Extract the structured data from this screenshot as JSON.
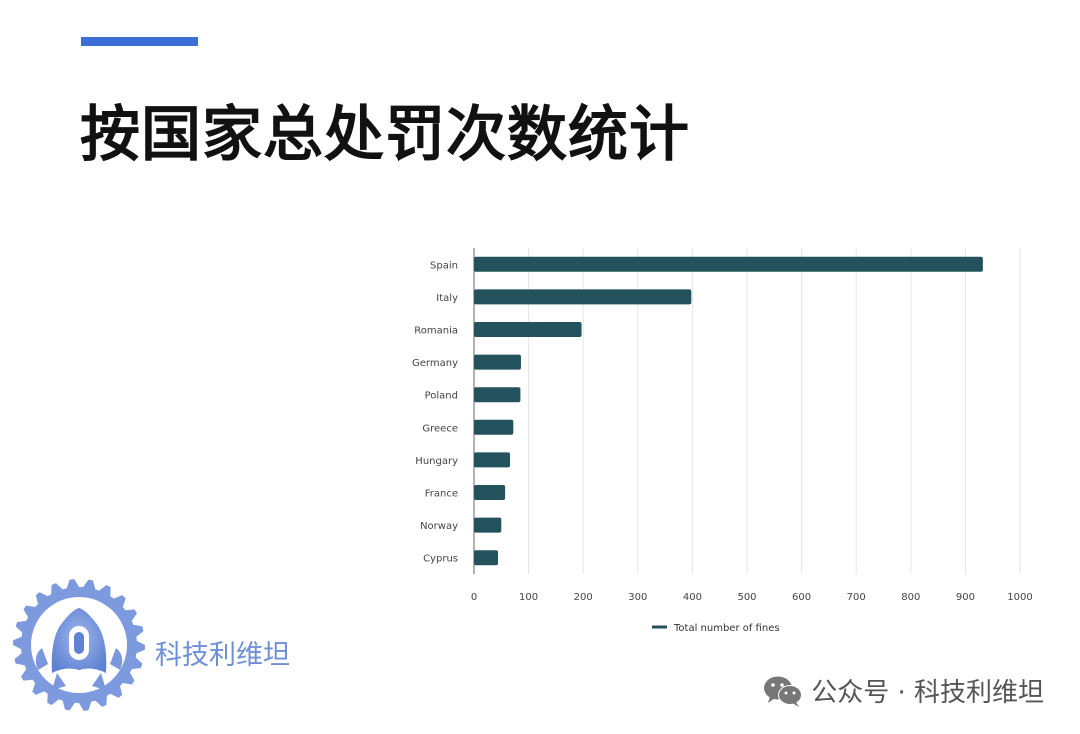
{
  "slide": {
    "title": "按国家总处罚次数统计"
  },
  "brand": {
    "name": "科技利维坦"
  },
  "footer": {
    "text": "公众号 · 科技利维坦",
    "icon": "wechat-icon"
  },
  "colors": {
    "accent": "#3b6fd6",
    "bar": "#24525c",
    "brand": "#6f8fd6"
  },
  "chart_data": {
    "type": "bar",
    "orientation": "horizontal",
    "categories": [
      "Spain",
      "Italy",
      "Romania",
      "Germany",
      "Poland",
      "Greece",
      "Hungary",
      "France",
      "Norway",
      "Cyprus"
    ],
    "series": [
      {
        "name": "Total number of fines",
        "values": [
          932,
          398,
          197,
          86,
          85,
          72,
          66,
          57,
          50,
          44
        ]
      }
    ],
    "xlim": [
      0,
      1000
    ],
    "xticks": [
      0,
      100,
      200,
      300,
      400,
      500,
      600,
      700,
      800,
      900,
      1000
    ],
    "grid": "vertical",
    "legend_position": "bottom-center"
  }
}
